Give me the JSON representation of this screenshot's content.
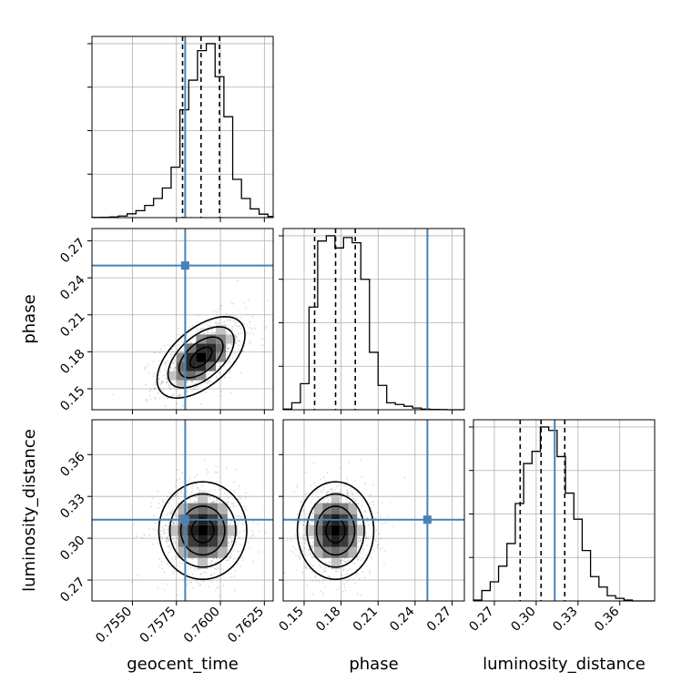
{
  "chart_data": {
    "type": "corner",
    "parameters": [
      {
        "name": "geocent_time",
        "range": [
          0.7527,
          0.763
        ],
        "ticks": [
          "0.7550",
          "0.7575",
          "0.7600",
          "0.7625"
        ]
      },
      {
        "name": "phase",
        "range": [
          0.133,
          0.28
        ],
        "ticks": [
          "0.15",
          "0.18",
          "0.21",
          "0.24",
          "0.27"
        ]
      },
      {
        "name": "luminosity_distance",
        "range": [
          0.255,
          0.385
        ],
        "ticks": [
          "0.27",
          "0.30",
          "0.33",
          "0.36"
        ]
      }
    ],
    "axis_labels": {
      "x": [
        "geocent_time",
        "phase",
        "luminosity_distance"
      ],
      "y": [
        "phase",
        "luminosity_distance"
      ]
    },
    "truths": [
      0.758,
      0.25,
      0.3133
    ],
    "truth_color": "#4682b4",
    "quantiles": {
      "geocent_time": [
        0.75785,
        0.7589,
        0.75995
      ],
      "phase": [
        0.1585,
        0.1755,
        0.1915
      ],
      "luminosity_distance": [
        0.2885,
        0.3035,
        0.3205
      ]
    },
    "histograms": [
      {
        "parameter": "geocent_time",
        "edges": [
          0.7527,
          0.7532,
          0.7537,
          0.7542,
          0.7547,
          0.7552,
          0.7557,
          0.7562,
          0.7567,
          0.7572,
          0.7577,
          0.7582,
          0.7587,
          0.7592,
          0.7597,
          0.7602,
          0.7607,
          0.7612,
          0.7617,
          0.7622,
          0.7627,
          0.763
        ],
        "counts": [
          0.001,
          0.002,
          0.004,
          0.009,
          0.022,
          0.04,
          0.07,
          0.11,
          0.17,
          0.29,
          0.62,
          0.79,
          0.96,
          1.0,
          0.81,
          0.58,
          0.22,
          0.11,
          0.05,
          0.02,
          0.007
        ]
      },
      {
        "parameter": "phase",
        "edges": [
          0.133,
          0.14,
          0.147,
          0.154,
          0.161,
          0.168,
          0.175,
          0.182,
          0.189,
          0.196,
          0.203,
          0.21,
          0.217,
          0.224,
          0.231,
          0.238,
          0.245,
          0.252,
          0.259,
          0.266,
          0.273,
          0.28
        ],
        "counts": [
          0.004,
          0.04,
          0.15,
          0.59,
          0.97,
          1.0,
          0.93,
          0.99,
          0.96,
          0.75,
          0.33,
          0.14,
          0.04,
          0.03,
          0.02,
          0.01,
          0.004,
          0.002,
          0.001,
          0.0,
          0.0
        ]
      },
      {
        "parameter": "luminosity_distance",
        "edges": [
          0.255,
          0.261,
          0.267,
          0.273,
          0.279,
          0.285,
          0.291,
          0.297,
          0.303,
          0.309,
          0.315,
          0.321,
          0.327,
          0.333,
          0.339,
          0.345,
          0.351,
          0.357,
          0.363,
          0.369,
          0.375,
          0.381,
          0.385
        ],
        "counts": [
          0.005,
          0.06,
          0.11,
          0.2,
          0.33,
          0.56,
          0.79,
          0.86,
          1.0,
          0.98,
          0.83,
          0.62,
          0.47,
          0.29,
          0.14,
          0.08,
          0.03,
          0.015,
          0.005,
          0.0,
          0.0,
          0.0
        ]
      }
    ],
    "joint_2d": [
      {
        "x": "geocent_time",
        "y": "phase",
        "center": [
          0.7589,
          0.1755
        ],
        "sd": [
          0.00125,
          0.0165
        ],
        "correlation": 0.55
      },
      {
        "x": "geocent_time",
        "y": "luminosity_distance",
        "center": [
          0.759,
          0.3055
        ],
        "sd": [
          0.00125,
          0.0175
        ],
        "correlation": 0.0
      },
      {
        "x": "phase",
        "y": "luminosity_distance",
        "center": [
          0.1755,
          0.3055
        ],
        "sd": [
          0.0155,
          0.0175
        ],
        "correlation": 0.0
      }
    ],
    "grid": true
  }
}
